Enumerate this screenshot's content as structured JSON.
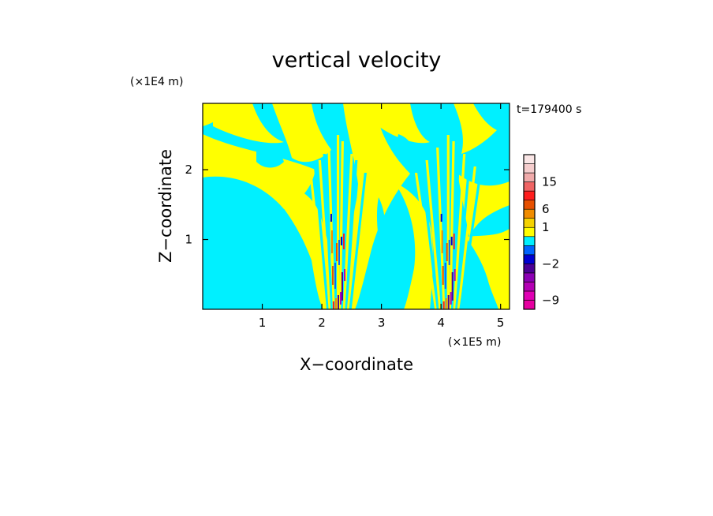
{
  "chart_data": {
    "type": "heatmap",
    "title": "vertical velocity",
    "xlabel": "X−coordinate",
    "ylabel": "Z−coordinate",
    "x_unit": "(×1E5 m)",
    "y_unit": "(×1E4 m)",
    "time_label": "t=179400 s",
    "x_ticks": [
      "1",
      "2",
      "3",
      "4",
      "5"
    ],
    "y_ticks": [
      "1",
      "2"
    ],
    "xlim": [
      0,
      5.15
    ],
    "ylim": [
      0,
      2.95
    ],
    "updraft_columns_x": [
      2.25,
      4.1
    ],
    "field_colors": {
      "positive": "#ffff00",
      "negative": "#00f0ff"
    },
    "colorbar": {
      "bins": [
        {
          "color": "#e600a0"
        },
        {
          "color": "#e000b4"
        },
        {
          "color": "#b400b4"
        },
        {
          "color": "#8c00b4"
        },
        {
          "color": "#4b0096"
        },
        {
          "color": "#0000d2"
        },
        {
          "color": "#0064ff"
        },
        {
          "color": "#00f0ff"
        },
        {
          "color": "#ffff00"
        },
        {
          "color": "#f5d200"
        },
        {
          "color": "#f08c00"
        },
        {
          "color": "#e65000"
        },
        {
          "color": "#ff1e1e"
        },
        {
          "color": "#f06464"
        },
        {
          "color": "#f0aaaa"
        },
        {
          "color": "#f5cdcd"
        },
        {
          "color": "#fae6e6"
        }
      ],
      "labels": [
        {
          "text": "−9",
          "bin": 1
        },
        {
          "text": "−2",
          "bin": 5
        },
        {
          "text": "1",
          "bin": 9
        },
        {
          "text": "6",
          "bin": 11
        },
        {
          "text": "15",
          "bin": 14
        }
      ]
    }
  }
}
